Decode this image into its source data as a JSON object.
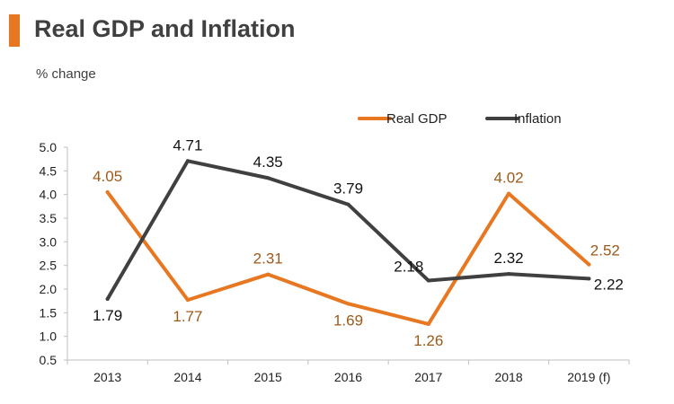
{
  "title": "Real GDP and Inflation",
  "subtitle": "% change",
  "colors": {
    "accent": "#e87722",
    "gdp": "#e87722",
    "gdp_label": "#9c5a1a",
    "inflation": "#404040",
    "inflation_label": "#111111"
  },
  "chart_data": {
    "type": "line",
    "categories": [
      "2013",
      "2014",
      "2015",
      "2016",
      "2017",
      "2018",
      "2019 (f)"
    ],
    "series": [
      {
        "name": "Real GDP",
        "values": [
          4.05,
          1.77,
          2.31,
          1.69,
          1.26,
          4.02,
          2.52
        ]
      },
      {
        "name": "Inflation",
        "values": [
          1.79,
          4.71,
          4.35,
          3.79,
          2.18,
          2.32,
          2.22
        ]
      }
    ],
    "yticks": [
      "0.5",
      "1.0",
      "1.5",
      "2.0",
      "2.5",
      "3.0",
      "3.5",
      "4.0",
      "4.5",
      "5.0"
    ],
    "ylim": [
      0.5,
      5.0
    ],
    "legend_position": "top-right",
    "grid": false
  }
}
